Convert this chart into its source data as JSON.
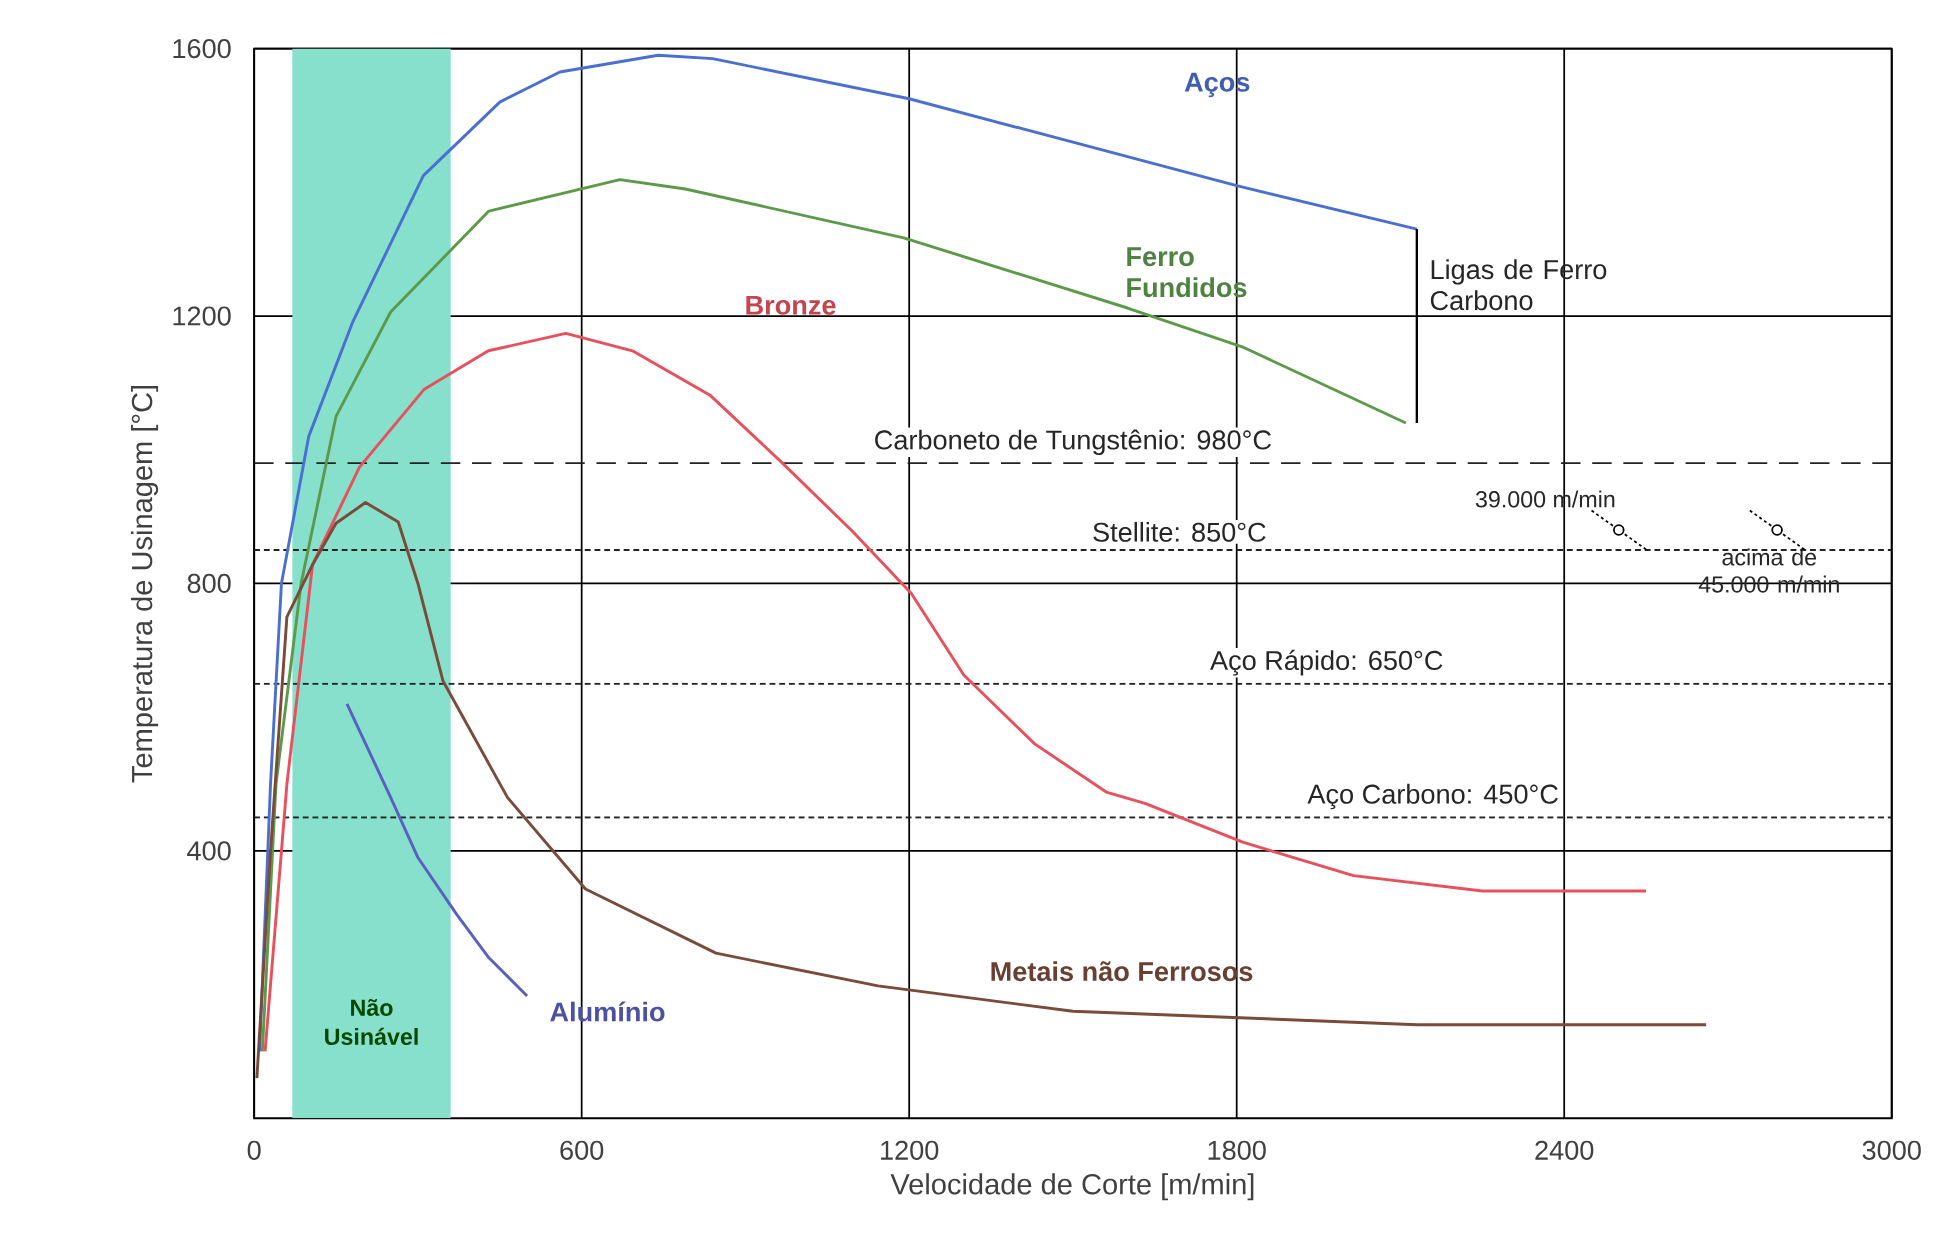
{
  "chart_data": {
    "type": "line",
    "xlabel": "Velocidade de Corte [m/min]",
    "ylabel": "Temperatura de Usinagem [°C]",
    "xlim": [
      0,
      3000
    ],
    "xticks": [
      0,
      600,
      1200,
      1800,
      2400,
      3000
    ],
    "ylim": [
      0,
      1600
    ],
    "yticks": [
      400,
      800,
      1200,
      1600
    ],
    "grid": true,
    "series": [
      {
        "name": "Aços",
        "color": "#4a6fd0",
        "x": [
          10,
          30,
          50,
          100,
          180,
          310,
          450,
          560,
          740,
          840,
          1200,
          1800,
          2130
        ],
        "values": [
          100,
          500,
          800,
          1020,
          1190,
          1410,
          1520,
          1565,
          1590,
          1585,
          1525,
          1395,
          1330
        ]
      },
      {
        "name": "Ferro Fundidos",
        "color": "#5c9a4a",
        "x": [
          15,
          40,
          86,
          150,
          250,
          430,
          670,
          790,
          1190,
          1600,
          1810,
          2110
        ],
        "values": [
          100,
          500,
          800,
          1050,
          1206,
          1357,
          1404,
          1390,
          1317,
          1212,
          1154,
          1040
        ]
      },
      {
        "name": "Bronze",
        "color": "#e8505c",
        "x": [
          20,
          60,
          107,
          193,
          311,
          429,
          571,
          693,
          836,
          964,
          1096,
          1204,
          1300,
          1430,
          1561,
          1632,
          1811,
          2014,
          2250,
          2550
        ],
        "values": [
          100,
          500,
          828,
          974,
          1090,
          1148,
          1174,
          1148,
          1081,
          983,
          878,
          785,
          663,
          560,
          488,
          471,
          413,
          363,
          340,
          340
        ]
      },
      {
        "name": "Alumínio",
        "color": "#5a5fc0",
        "x": [
          170,
          210,
          250,
          300,
          371,
          430,
          500
        ],
        "values": [
          620,
          550,
          480,
          390,
          305,
          240,
          183
        ]
      },
      {
        "name": "Metais não Ferrosos",
        "color": "#7a4a3a",
        "x": [
          5,
          30,
          60,
          107,
          150,
          204,
          264,
          300,
          346,
          464,
          607,
          846,
          1143,
          1500,
          2130,
          2660
        ],
        "values": [
          60,
          400,
          750,
          828,
          890,
          921,
          892,
          800,
          654,
          480,
          343,
          247,
          198,
          160,
          140,
          140
        ]
      }
    ],
    "ref_lines": [
      {
        "axis": "y",
        "value": 980,
        "label": "Carboneto de Tungstênio: 980°C",
        "line_style": "dashed",
        "color": "#222222"
      },
      {
        "axis": "y",
        "value": 850,
        "label": "Stellite: 850°C",
        "line_style": "dotted",
        "color": "#222222"
      },
      {
        "axis": "y",
        "value": 650,
        "label": "Aço Rápido: 650°C",
        "line_style": "dotted",
        "color": "#222222"
      },
      {
        "axis": "y",
        "value": 450,
        "label": "Aço Carbono: 450°C",
        "line_style": "dotted",
        "color": "#222222"
      }
    ],
    "bands": [
      {
        "axis": "x",
        "from": 70,
        "to": 360,
        "label": "Não Usinável",
        "color": "#86e0cc"
      }
    ],
    "annotations": [
      "Ligas de Ferro Carbono",
      {
        "text": "39.000 m/min",
        "x": 2500,
        "y": 880
      },
      {
        "text": "acima de 45.000 m/min",
        "x": 2790,
        "y": 880
      }
    ]
  }
}
